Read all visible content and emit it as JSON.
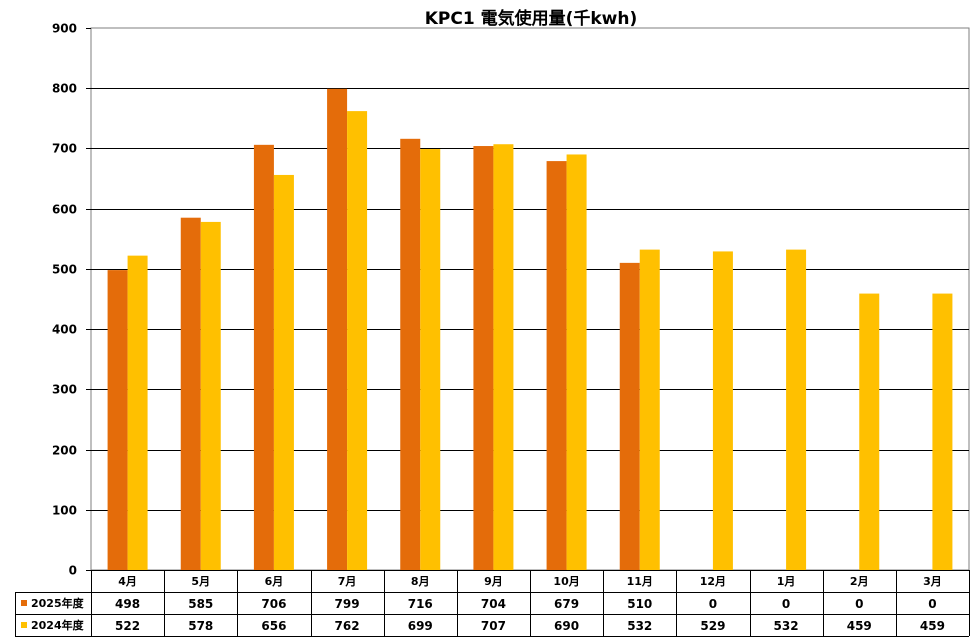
{
  "chart_data": {
    "type": "bar",
    "title": "KPC1 電気使用量(千kwh)",
    "categories": [
      "4月",
      "5月",
      "6月",
      "7月",
      "8月",
      "9月",
      "10月",
      "11月",
      "12月",
      "1月",
      "2月",
      "3月"
    ],
    "series": [
      {
        "name": "2025年度",
        "color": "#E46C0A",
        "values": [
          498,
          585,
          706,
          799,
          716,
          704,
          679,
          510,
          0,
          0,
          0,
          0
        ]
      },
      {
        "name": "2024年度",
        "color": "#FFC000",
        "values": [
          522,
          578,
          656,
          762,
          699,
          707,
          690,
          532,
          529,
          532,
          459,
          459
        ]
      }
    ],
    "ylim": [
      0,
      900
    ],
    "yticks": [
      0,
      100,
      200,
      300,
      400,
      500,
      600,
      700,
      800,
      900
    ],
    "grid": true,
    "legend": "data-table",
    "data_table": true
  }
}
